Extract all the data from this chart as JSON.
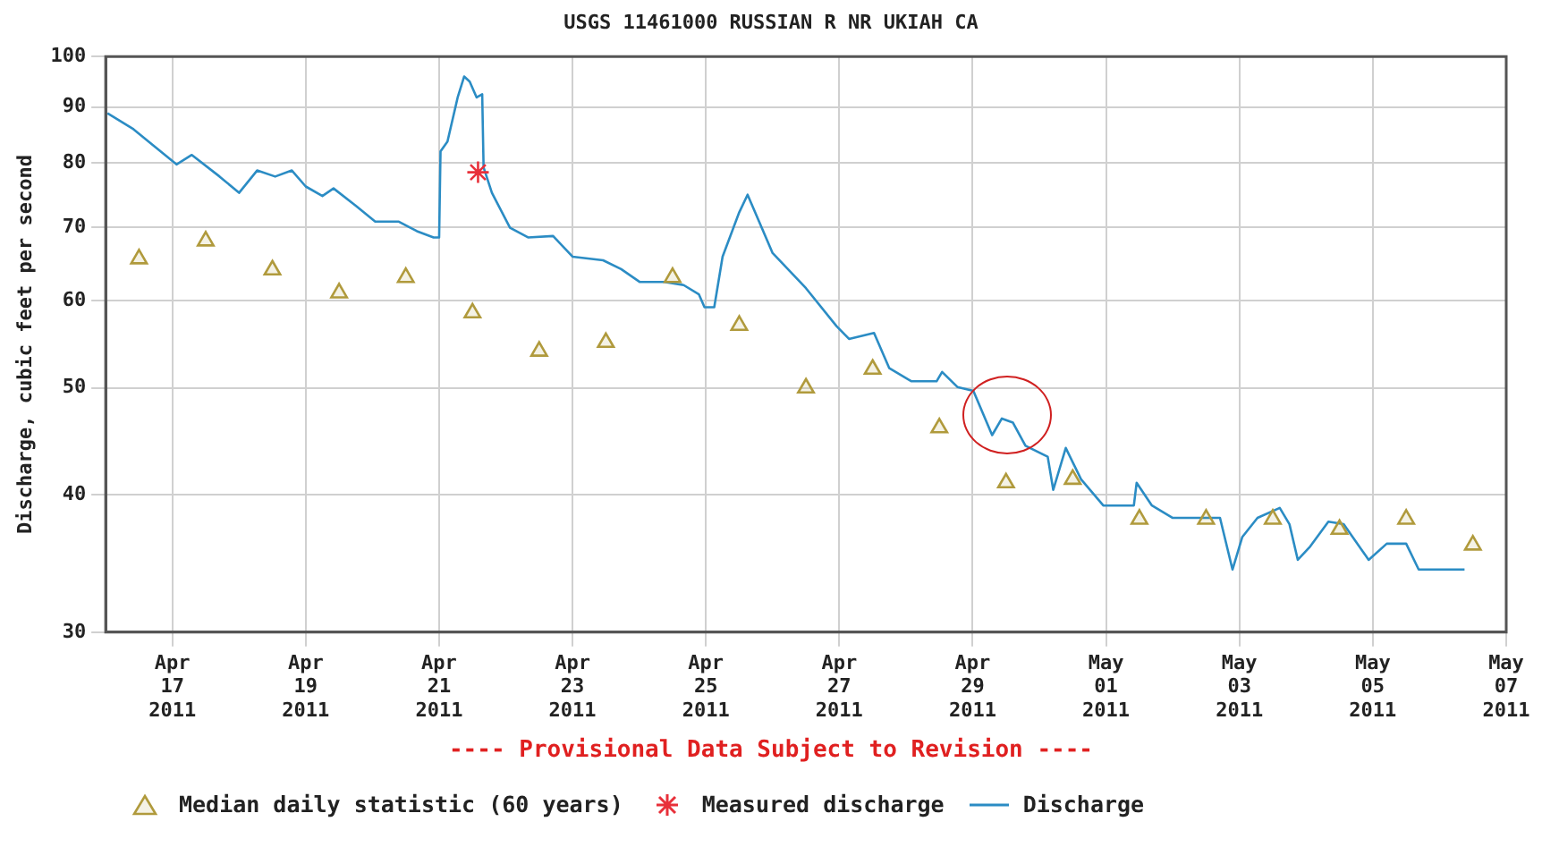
{
  "chart_data": {
    "type": "line",
    "title": "USGS 11461000 RUSSIAN R NR UKIAH CA",
    "ylabel": "Discharge, cubic feet per second",
    "annotations": [
      "---- Provisional Data Subject to Revision ----"
    ],
    "log": "y",
    "grid": true,
    "legend": "bottom",
    "xlim": [
      "2011-04-16T00:00",
      "2011-05-07T00:00"
    ],
    "xticks": [
      {
        "value": "2011-04-17T00:00",
        "label": "Apr 17 2011"
      },
      {
        "value": "2011-04-19T00:00",
        "label": "Apr 19 2011"
      },
      {
        "value": "2011-04-21T00:00",
        "label": "Apr 21 2011"
      },
      {
        "value": "2011-04-23T00:00",
        "label": "Apr 23 2011"
      },
      {
        "value": "2011-04-25T00:00",
        "label": "Apr 25 2011"
      },
      {
        "value": "2011-04-27T00:00",
        "label": "Apr 27 2011"
      },
      {
        "value": "2011-04-29T00:00",
        "label": "Apr 29 2011"
      },
      {
        "value": "2011-05-01T00:00",
        "label": "May 01 2011"
      },
      {
        "value": "2011-05-03T00:00",
        "label": "May 03 2011"
      },
      {
        "value": "2011-05-05T00:00",
        "label": "May 05 2011"
      },
      {
        "value": "2011-05-07T00:00",
        "label": "May 07 2011"
      }
    ],
    "ylim": [
      30,
      100
    ],
    "yticks": [
      {
        "value": 30,
        "label": "30"
      },
      {
        "value": 40,
        "label": "40"
      },
      {
        "value": 50,
        "label": "50"
      },
      {
        "value": 60,
        "label": "60"
      },
      {
        "value": 70,
        "label": "70"
      },
      {
        "value": 80,
        "label": "80"
      },
      {
        "value": 90,
        "label": "90"
      },
      {
        "value": 100,
        "label": "100"
      }
    ],
    "series": [
      {
        "name": "Median daily statistic (60 years)",
        "type": "scatter",
        "marker": "triangle",
        "color": "#b09a3c",
        "x": [
          "2011-04-16T12:00",
          "2011-04-17T12:00",
          "2011-04-18T12:00",
          "2011-04-19T12:00",
          "2011-04-20T12:00",
          "2011-04-21T12:00",
          "2011-04-22T12:00",
          "2011-04-23T12:00",
          "2011-04-24T12:00",
          "2011-04-25T12:00",
          "2011-04-26T12:00",
          "2011-04-27T12:00",
          "2011-04-28T12:00",
          "2011-04-29T12:00",
          "2011-04-30T12:00",
          "2011-05-01T12:00",
          "2011-05-02T12:00",
          "2011-05-03T12:00",
          "2011-05-04T12:00",
          "2011-05-05T12:00",
          "2011-05-06T12:00"
        ],
        "values": [
          65.5,
          68,
          64,
          61,
          63,
          58.5,
          54,
          55,
          63,
          57,
          50,
          52,
          46,
          41,
          41.3,
          38,
          38,
          38,
          37.2,
          38,
          36
        ]
      },
      {
        "name": "Measured discharge",
        "type": "scatter",
        "marker": "cross",
        "color": "#e8303a",
        "x": [
          "2011-04-21T14:00"
        ],
        "values": [
          78.5
        ]
      },
      {
        "name": "Discharge",
        "marker": "none",
        "color": "#2b8cc4",
        "x": [
          "2011-04-16T00:40",
          "2011-04-16T10:00",
          "2011-04-16T17:00",
          "2011-04-17T01:30",
          "2011-04-17T07:00",
          "2011-04-17T17:00",
          "2011-04-18T00:00",
          "2011-04-18T06:30",
          "2011-04-18T13:00",
          "2011-04-18T19:00",
          "2011-04-19T00:00",
          "2011-04-19T06:00",
          "2011-04-19T10:00",
          "2011-04-19T18:00",
          "2011-04-20T01:00",
          "2011-04-20T09:30",
          "2011-04-20T16:00",
          "2011-04-20T22:00",
          "2011-04-21T00:00",
          "2011-04-21T00:30",
          "2011-04-21T03:00",
          "2011-04-21T06:40",
          "2011-04-21T09:00",
          "2011-04-21T11:00",
          "2011-04-21T13:30",
          "2011-04-21T15:30",
          "2011-04-21T16:00",
          "2011-04-21T19:00",
          "2011-04-22T01:30",
          "2011-04-22T08:00",
          "2011-04-22T17:00",
          "2011-04-23T00:00",
          "2011-04-23T11:00",
          "2011-04-23T17:30",
          "2011-04-24T00:15",
          "2011-04-24T09:00",
          "2011-04-24T16:00",
          "2011-04-24T21:30",
          "2011-04-24T23:30",
          "2011-04-25T03:00",
          "2011-04-25T06:00",
          "2011-04-25T12:00",
          "2011-04-25T15:00",
          "2011-04-26T00:00",
          "2011-04-26T12:00",
          "2011-04-26T23:00",
          "2011-04-27T03:30",
          "2011-04-27T12:30",
          "2011-04-27T18:00",
          "2011-04-28T02:00",
          "2011-04-28T11:00",
          "2011-04-28T13:00",
          "2011-04-28T18:30",
          "2011-04-29T00:15",
          "2011-04-29T07:00",
          "2011-04-29T10:30",
          "2011-04-29T14:30",
          "2011-04-29T19:00",
          "2011-04-30T03:00",
          "2011-04-30T05:00",
          "2011-04-30T09:30",
          "2011-04-30T15:00",
          "2011-04-30T23:00",
          "2011-05-01T10:00",
          "2011-05-01T11:00",
          "2011-05-01T16:30",
          "2011-05-02T00:00",
          "2011-05-02T17:00",
          "2011-05-02T21:30",
          "2011-05-03T01:00",
          "2011-05-03T06:30",
          "2011-05-03T14:30",
          "2011-05-03T18:00",
          "2011-05-03T21:00",
          "2011-05-04T01:30",
          "2011-05-04T08:00",
          "2011-05-04T13:30",
          "2011-05-04T22:30",
          "2011-05-05T05:00",
          "2011-05-05T12:00",
          "2011-05-05T16:30",
          "2011-05-06T09:00"
        ],
        "values": [
          88.8,
          85.9,
          83.1,
          79.8,
          81.4,
          77.8,
          75.2,
          78.8,
          77.8,
          78.8,
          76.2,
          74.7,
          75.9,
          73.2,
          70.8,
          70.8,
          69.4,
          68.5,
          68.5,
          82,
          83.7,
          91.8,
          95.9,
          94.9,
          91.8,
          92.4,
          79.3,
          75.2,
          69.9,
          68.5,
          68.7,
          65.8,
          65.3,
          64.1,
          62.4,
          62.4,
          62,
          60.8,
          59.2,
          59.2,
          65.8,
          72.2,
          74.9,
          66.3,
          61.6,
          56.9,
          55.4,
          56.1,
          52.1,
          50.7,
          50.7,
          51.7,
          50.1,
          49.7,
          45.3,
          46.9,
          46.5,
          44.3,
          43.3,
          40.4,
          44.1,
          41.3,
          39.1,
          39.1,
          41,
          39.1,
          38.1,
          38.1,
          34.2,
          36.6,
          38.1,
          38.9,
          37.6,
          34.9,
          35.9,
          37.8,
          37.6,
          34.9,
          36.1,
          36.1,
          34.2,
          34.2
        ]
      }
    ]
  }
}
